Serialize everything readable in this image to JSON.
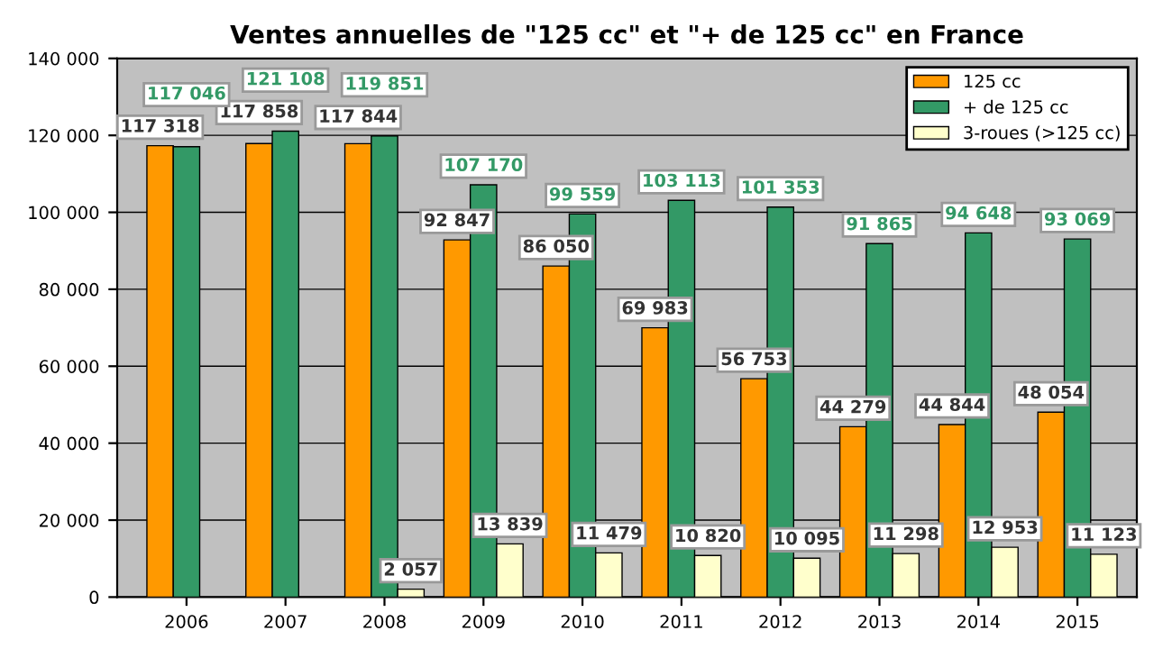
{
  "chart_data": {
    "type": "bar",
    "title": "Ventes annuelles de \"125 cc\" et \"+ de 125 cc\" en France",
    "categories": [
      "2006",
      "2007",
      "2008",
      "2009",
      "2010",
      "2011",
      "2012",
      "2013",
      "2014",
      "2015"
    ],
    "series": [
      {
        "name": "125 cc",
        "color": "#ff9900",
        "values": [
          117318,
          117858,
          117844,
          92847,
          86050,
          69983,
          56753,
          44279,
          44844,
          48054
        ],
        "value_labels": [
          "117 318",
          "117 858",
          "117 844",
          "92 847",
          "86 050",
          "69 983",
          "56 753",
          "44 279",
          "44 844",
          "48 054"
        ]
      },
      {
        "name": "+ de 125 cc",
        "color": "#339966",
        "values": [
          117046,
          121108,
          119851,
          107170,
          99559,
          103113,
          101353,
          91865,
          94648,
          93069
        ],
        "value_labels": [
          "117 046",
          "121 108",
          "119 851",
          "107 170",
          "99 559",
          "103 113",
          "101 353",
          "91 865",
          "94 648",
          "93 069"
        ]
      },
      {
        "name": "3-roues (>125 cc)",
        "color": "#ffffcc",
        "values": [
          null,
          null,
          2057,
          13839,
          11479,
          10820,
          10095,
          11298,
          12953,
          11123
        ],
        "value_labels": [
          null,
          null,
          "2 057",
          "13 839",
          "11 479",
          "10 820",
          "10 095",
          "11 298",
          "12 953",
          "11 123"
        ]
      }
    ],
    "ylim": [
      0,
      140000
    ],
    "yticks": [
      0,
      {
        "value": 20000,
        "label": "20 000"
      },
      {
        "value": 40000,
        "label": "40 000"
      },
      {
        "value": 60000,
        "label": "60 000"
      },
      {
        "value": 80000,
        "label": "80 000"
      },
      {
        "value": 100000,
        "label": "100 000"
      },
      {
        "value": 120000,
        "label": "120 000"
      },
      {
        "value": 140000,
        "label": "140 000"
      }
    ],
    "grid": "y",
    "legend": "top right"
  }
}
